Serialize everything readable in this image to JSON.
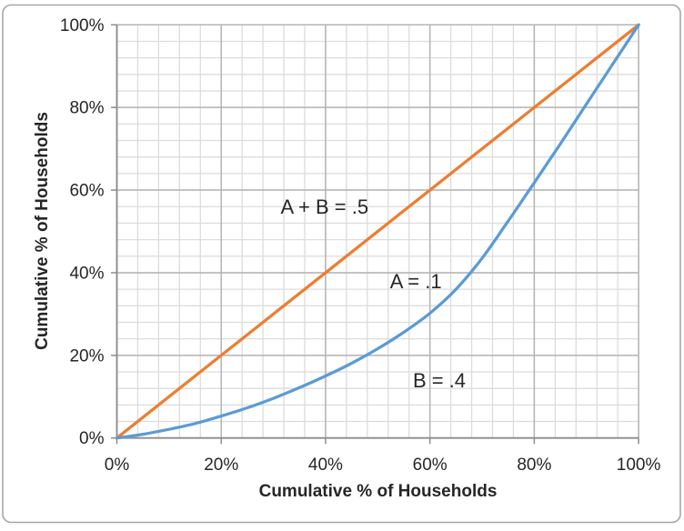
{
  "chart": {
    "background": "#ffffff",
    "border_color": "#a6a6a6",
    "text_color": "#262626"
  },
  "chart_data": {
    "type": "line",
    "title": "",
    "xlabel": "Cumulative % of Households",
    "ylabel": "Cumulative % of Households",
    "xlim": [
      0,
      100
    ],
    "ylim": [
      0,
      100
    ],
    "x_tick_values": [
      0,
      20,
      40,
      60,
      80,
      100
    ],
    "x_tick_labels": [
      "0%",
      "20%",
      "40%",
      "60%",
      "80%",
      "100%"
    ],
    "y_tick_values": [
      0,
      20,
      40,
      60,
      80,
      100
    ],
    "y_tick_labels": [
      "0%",
      "20%",
      "40%",
      "60%",
      "80%",
      "100%"
    ],
    "minor_unit_x": 4,
    "minor_unit_y": 4,
    "grid": {
      "minor_color": "#dcdcdc",
      "major_color": "#b4b4b4",
      "axis_color": "#8c8c8c"
    },
    "legend": "none",
    "series": [
      {
        "name": "line-of-equality",
        "color": "#ED7D31",
        "width": 3.25,
        "smooth": false,
        "x": [
          0,
          100
        ],
        "y": [
          0,
          100
        ]
      },
      {
        "name": "lorenz-curve",
        "color": "#5B9BD5",
        "width": 3.25,
        "smooth": true,
        "x": [
          0,
          5,
          10,
          15,
          20,
          25,
          30,
          35,
          40,
          45,
          50,
          55,
          60,
          65,
          70,
          75,
          80,
          85,
          90,
          95,
          100
        ],
        "y": [
          0,
          0.9,
          2.1,
          3.5,
          5.3,
          7.3,
          9.6,
          12.2,
          15.0,
          18.1,
          21.6,
          25.6,
          30.2,
          36.0,
          43.5,
          52.5,
          61.8,
          71.2,
          80.8,
          90.4,
          100
        ]
      }
    ],
    "annotations": [
      {
        "text": "A + B = .5",
        "x": 39.8,
        "y": 55.8
      },
      {
        "text": "A = .1",
        "x": 57.3,
        "y": 37.7
      },
      {
        "text": "B = .4",
        "x": 61.8,
        "y": 13.8
      }
    ]
  }
}
